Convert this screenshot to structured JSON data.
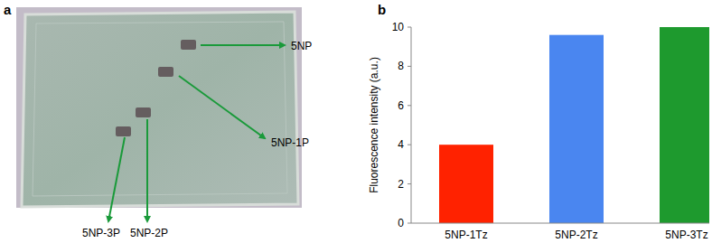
{
  "figure": {
    "panel_labels": [
      "a",
      "b"
    ],
    "gel": {
      "bands": [
        {
          "label": "5NP"
        },
        {
          "label": "5NP-1P"
        },
        {
          "label": "5NP-2P"
        },
        {
          "label": "5NP-3P"
        }
      ]
    }
  },
  "chart_data": {
    "type": "bar",
    "y_label": "Fluorescence intensity (a.u.)",
    "categories": [
      "5NP-1Tz",
      "5NP-2Tz",
      "5NP-3Tz"
    ],
    "values": [
      4,
      9.6,
      10
    ],
    "colors": [
      "#ff2200",
      "#4a86f0",
      "#1e9a2e"
    ],
    "ylim": [
      0,
      10
    ],
    "yticks": [
      0,
      2,
      4,
      6,
      8,
      10
    ],
    "grid": false
  }
}
